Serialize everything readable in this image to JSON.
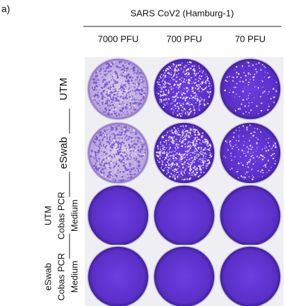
{
  "panel_label": "a)",
  "header": {
    "title": "SARS CoV2 (Hamburg-1)"
  },
  "columns": [
    "7000 PFU",
    "700 PFU",
    "70 PFU"
  ],
  "rows": [
    {
      "lines": [
        "UTM"
      ]
    },
    {
      "lines": [
        "eSwab"
      ]
    },
    {
      "lines": [
        "UTM",
        "Cobas PCR",
        "Medium"
      ]
    },
    {
      "lines": [
        "eSwab",
        "Cobas PCR",
        "Medium"
      ]
    }
  ]
}
